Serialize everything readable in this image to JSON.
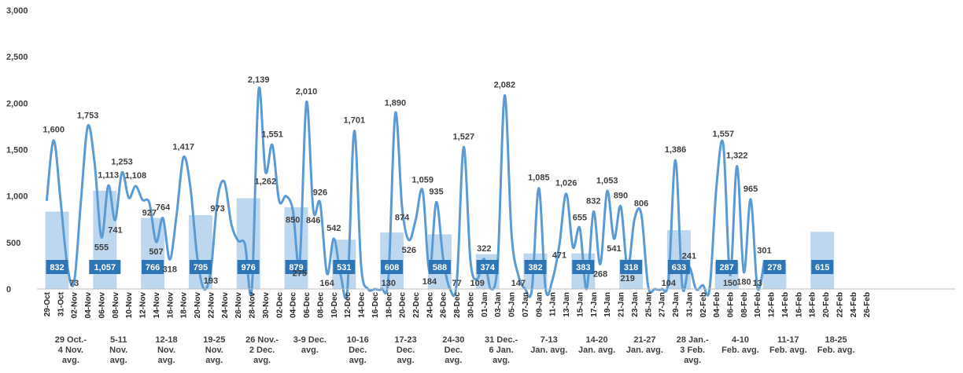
{
  "chart_data": {
    "type": "bar+line",
    "title": "",
    "ylim": [
      0,
      3000
    ],
    "yticks": [
      "0",
      "500",
      "1,000",
      "1,500",
      "2,000",
      "2,500",
      "3,000"
    ],
    "grid": false,
    "colors": {
      "line": "#5B9BD5",
      "bar": "#BDD7EE",
      "bar_label_bg": "#2E75B6",
      "text": "#404040"
    },
    "x": [
      "29-Oct",
      "31-Oct",
      "02-Nov",
      "04-Nov",
      "06-Nov",
      "08-Nov",
      "10-Nov",
      "12-Nov",
      "14-Nov",
      "16-Nov",
      "18-Nov",
      "20-Nov",
      "22-Nov",
      "24-Nov",
      "26-Nov",
      "28-Nov",
      "30-Nov",
      "02-Dec",
      "04-Dec",
      "06-Dec",
      "08-Dec",
      "10-Dec",
      "12-Dec",
      "14-Dec",
      "16-Dec",
      "18-Dec",
      "20-Dec",
      "22-Dec",
      "24-Dec",
      "26-Dec",
      "28-Dec",
      "30-Dec",
      "01-Jan",
      "03-Jan",
      "05-Jan",
      "07-Jan",
      "09-Jan",
      "11-Jan",
      "13-Jan",
      "15-Jan",
      "17-Jan",
      "19-Jan",
      "21-Jan",
      "23-Jan",
      "25-Jan",
      "27-Jan",
      "29-Jan",
      "31-Jan",
      "02-Feb",
      "04-Feb",
      "06-Feb",
      "08-Feb",
      "10-Feb",
      "12-Feb",
      "14-Feb",
      "16-Feb",
      "18-Feb",
      "20-Feb",
      "22-Feb",
      "24-Feb",
      "26-Feb"
    ],
    "line_points": [
      {
        "d": 0,
        "v": 960
      },
      {
        "d": 1,
        "v": 1600,
        "label": "1,600"
      },
      {
        "d": 2,
        "v": 960
      },
      {
        "d": 3,
        "v": 250
      },
      {
        "d": 4,
        "v": 73,
        "label": "73"
      },
      {
        "d": 5,
        "v": 950
      },
      {
        "d": 6,
        "v": 1753,
        "label": "1,753"
      },
      {
        "d": 7,
        "v": 1350
      },
      {
        "d": 8,
        "v": 555,
        "label": "555"
      },
      {
        "d": 9,
        "v": 1113,
        "label": "1,113"
      },
      {
        "d": 10,
        "v": 741,
        "label": "741"
      },
      {
        "d": 11,
        "v": 1253,
        "label": "1,253"
      },
      {
        "d": 12,
        "v": 980
      },
      {
        "d": 13,
        "v": 1108,
        "label": "1,108"
      },
      {
        "d": 14,
        "v": 960
      },
      {
        "d": 15,
        "v": 927,
        "label": "927"
      },
      {
        "d": 16,
        "v": 507,
        "label": "507"
      },
      {
        "d": 17,
        "v": 764,
        "label": "764"
      },
      {
        "d": 18,
        "v": 318,
        "label": "318"
      },
      {
        "d": 19,
        "v": 800
      },
      {
        "d": 20,
        "v": 1417,
        "label": "1,417"
      },
      {
        "d": 21,
        "v": 1100
      },
      {
        "d": 22,
        "v": 350
      },
      {
        "d": 23,
        "v": 0
      },
      {
        "d": 24,
        "v": 193,
        "label": "193"
      },
      {
        "d": 25,
        "v": 973,
        "label": "973"
      },
      {
        "d": 26,
        "v": 1150
      },
      {
        "d": 27,
        "v": 700
      },
      {
        "d": 28,
        "v": 520
      },
      {
        "d": 29,
        "v": 480
      },
      {
        "d": 30,
        "v": 0
      },
      {
        "d": 31,
        "v": 2139,
        "label": "2,139"
      },
      {
        "d": 32,
        "v": 1262,
        "label": "1,262"
      },
      {
        "d": 33,
        "v": 1551,
        "label": "1,551"
      },
      {
        "d": 34,
        "v": 950
      },
      {
        "d": 35,
        "v": 1000
      },
      {
        "d": 36,
        "v": 850,
        "label": "850"
      },
      {
        "d": 37,
        "v": 275,
        "label": "275"
      },
      {
        "d": 38,
        "v": 2010,
        "label": "2,010"
      },
      {
        "d": 39,
        "v": 846,
        "label": "846"
      },
      {
        "d": 40,
        "v": 926,
        "label": "926"
      },
      {
        "d": 41,
        "v": 164,
        "label": "164"
      },
      {
        "d": 42,
        "v": 542,
        "label": "542"
      },
      {
        "d": 43,
        "v": 150
      },
      {
        "d": 44,
        "v": 0
      },
      {
        "d": 45,
        "v": 1701,
        "label": "1,701"
      },
      {
        "d": 46,
        "v": 250
      },
      {
        "d": 47,
        "v": 0
      },
      {
        "d": 48,
        "v": 0
      },
      {
        "d": 49,
        "v": 0
      },
      {
        "d": 50,
        "v": 130,
        "label": "130"
      },
      {
        "d": 51,
        "v": 1890,
        "label": "1,890"
      },
      {
        "d": 52,
        "v": 874,
        "label": "874"
      },
      {
        "d": 53,
        "v": 526,
        "label": "526"
      },
      {
        "d": 54,
        "v": 750
      },
      {
        "d": 55,
        "v": 1059,
        "label": "1,059"
      },
      {
        "d": 56,
        "v": 184,
        "label": "184"
      },
      {
        "d": 57,
        "v": 935,
        "label": "935"
      },
      {
        "d": 58,
        "v": 330
      },
      {
        "d": 59,
        "v": 0
      },
      {
        "d": 60,
        "v": 77,
        "label": "77"
      },
      {
        "d": 61,
        "v": 1527,
        "label": "1,527"
      },
      {
        "d": 62,
        "v": 300
      },
      {
        "d": 63,
        "v": 109,
        "label": "109"
      },
      {
        "d": 64,
        "v": 322,
        "label": "322"
      },
      {
        "d": 65,
        "v": 0
      },
      {
        "d": 66,
        "v": 300
      },
      {
        "d": 67,
        "v": 2082,
        "label": "2,082"
      },
      {
        "d": 68,
        "v": 600
      },
      {
        "d": 69,
        "v": 147,
        "label": "147"
      },
      {
        "d": 70,
        "v": 0
      },
      {
        "d": 71,
        "v": 0
      },
      {
        "d": 72,
        "v": 1085,
        "label": "1,085"
      },
      {
        "d": 73,
        "v": 0
      },
      {
        "d": 74,
        "v": 100
      },
      {
        "d": 75,
        "v": 471,
        "label": "471"
      },
      {
        "d": 76,
        "v": 1026,
        "label": "1,026"
      },
      {
        "d": 77,
        "v": 450
      },
      {
        "d": 78,
        "v": 655,
        "label": "655"
      },
      {
        "d": 79,
        "v": 0
      },
      {
        "d": 80,
        "v": 832,
        "label": "832"
      },
      {
        "d": 81,
        "v": 268,
        "label": "268"
      },
      {
        "d": 82,
        "v": 1053,
        "label": "1,053"
      },
      {
        "d": 83,
        "v": 541,
        "label": "541"
      },
      {
        "d": 84,
        "v": 890,
        "label": "890"
      },
      {
        "d": 85,
        "v": 219,
        "label": "219"
      },
      {
        "d": 86,
        "v": 750
      },
      {
        "d": 87,
        "v": 806,
        "label": "806"
      },
      {
        "d": 88,
        "v": 30
      },
      {
        "d": 89,
        "v": 0
      },
      {
        "d": 90,
        "v": 0
      },
      {
        "d": 91,
        "v": 104,
        "label": "104"
      },
      {
        "d": 92,
        "v": 1386,
        "label": "1,386"
      },
      {
        "d": 93,
        "v": 30
      },
      {
        "d": 94,
        "v": 241,
        "label": "241"
      },
      {
        "d": 95,
        "v": 0
      },
      {
        "d": 96,
        "v": 40
      },
      {
        "d": 97,
        "v": 0
      },
      {
        "d": 98,
        "v": 1100
      },
      {
        "d": 99,
        "v": 1557,
        "label": "1,557"
      },
      {
        "d": 100,
        "v": 150,
        "label": "150"
      },
      {
        "d": 101,
        "v": 1322,
        "label": "1,322"
      },
      {
        "d": 102,
        "v": 180,
        "label": "180"
      },
      {
        "d": 103,
        "v": 965,
        "label": "965"
      },
      {
        "d": 104,
        "v": 13,
        "label": "13"
      },
      {
        "d": 105,
        "v": 301,
        "label": "301"
      }
    ],
    "bars": [
      {
        "name": "29 Oct.- 4 Nov. avg.",
        "value": 832,
        "label": "832",
        "group_lines": [
          "29 Oct.-",
          "4 Nov.",
          "avg."
        ]
      },
      {
        "name": "5-11 Nov. avg.",
        "value": 1057,
        "label": "1,057",
        "group_lines": [
          "5-11",
          "Nov.",
          "avg."
        ]
      },
      {
        "name": "12-18 Nov. avg.",
        "value": 766,
        "label": "766",
        "group_lines": [
          "12-18",
          "Nov.",
          "avg."
        ]
      },
      {
        "name": "19-25 Nov. avg.",
        "value": 795,
        "label": "795",
        "group_lines": [
          "19-25",
          "Nov.",
          "avg."
        ]
      },
      {
        "name": "26 Nov.- 2 Dec. avg.",
        "value": 976,
        "label": "976",
        "group_lines": [
          "26 Nov.-",
          "2 Dec.",
          "avg."
        ]
      },
      {
        "name": "3-9 Dec. avg.",
        "value": 879,
        "label": "879",
        "group_lines": [
          "3-9 Dec.",
          "avg."
        ]
      },
      {
        "name": "10-16 Dec. avg.",
        "value": 531,
        "label": "531",
        "group_lines": [
          "10-16",
          "Dec.",
          "avg."
        ]
      },
      {
        "name": "17-23 Dec. avg.",
        "value": 608,
        "label": "608",
        "group_lines": [
          "17-23",
          "Dec.",
          "avg."
        ]
      },
      {
        "name": "24-30 Dec. avg.",
        "value": 588,
        "label": "588",
        "group_lines": [
          "24-30",
          "Dec.",
          "avg."
        ]
      },
      {
        "name": "31 Dec.- 6 Jan. avg.",
        "value": 374,
        "label": "374",
        "group_lines": [
          "31 Dec.-",
          "6 Jan.",
          "avg."
        ]
      },
      {
        "name": "7-13 Jan. avg.",
        "value": 382,
        "label": "382",
        "group_lines": [
          "7-13",
          "Jan. avg."
        ]
      },
      {
        "name": "14-20 Jan. avg.",
        "value": 383,
        "label": "383",
        "group_lines": [
          "14-20",
          "Jan. avg."
        ]
      },
      {
        "name": "21-27 Jan. avg.",
        "value": 318,
        "label": "318",
        "group_lines": [
          "21-27",
          "Jan. avg."
        ]
      },
      {
        "name": "28 Jan.- 3 Feb. avg.",
        "value": 633,
        "label": "633",
        "group_lines": [
          "28 Jan.-",
          "3 Feb.",
          "avg."
        ]
      },
      {
        "name": "4-10 Feb. avg.",
        "value": 287,
        "label": "287",
        "group_lines": [
          "4-10",
          "Feb. avg."
        ]
      },
      {
        "name": "11-17 Feb. avg.",
        "value": 278,
        "label": "278",
        "group_lines": [
          "11-17",
          "Feb. avg."
        ]
      },
      {
        "name": "18-25 Feb. avg.",
        "value": 615,
        "label": "615",
        "group_lines": [
          "18-25",
          "Feb. avg."
        ]
      }
    ]
  }
}
